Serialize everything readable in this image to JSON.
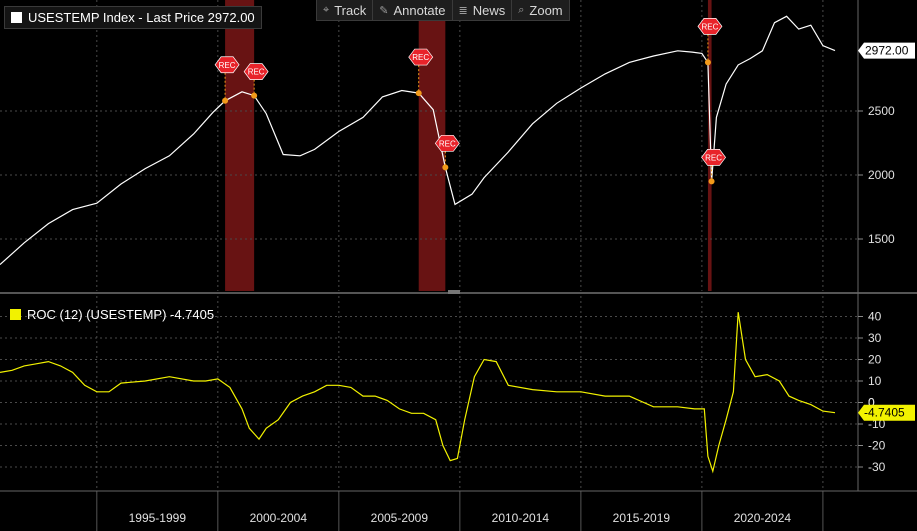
{
  "toolbar": {
    "track": "Track",
    "annotate": "Annotate",
    "news": "News",
    "zoom": "Zoom"
  },
  "legend_top": "USESTEMP Index - Last Price 2972.00",
  "legend_bottom": "ROC (12) (USESTEMP) -4.7405",
  "colors": {
    "price_line": "#ffffff",
    "roc_line": "#f2f200",
    "recession_band": "#8b1a1a",
    "rec_marker": "#e8232a",
    "marker_dot": "#f29a1a",
    "grid": "#4a4a4a"
  },
  "chart_data": [
    {
      "type": "line",
      "series": [
        {
          "name": "USESTEMP Index",
          "x": [
            1991.0,
            1992.0,
            1993.0,
            1994.0,
            1995.0,
            1996.0,
            1997.0,
            1998.0,
            1999.0,
            1999.8,
            2000.3,
            2001.0,
            2001.5,
            2002.0,
            2002.7,
            2003.4,
            2004.0,
            2005.0,
            2006.0,
            2006.8,
            2007.6,
            2008.3,
            2008.9,
            2009.4,
            2009.8,
            2010.5,
            2011.0,
            2012.0,
            2013.0,
            2014.0,
            2015.0,
            2016.0,
            2017.0,
            2018.0,
            2019.0,
            2019.6,
            2020.0,
            2020.25,
            2020.4,
            2020.6,
            2021.0,
            2021.5,
            2022.0,
            2022.5,
            2023.0,
            2023.5,
            2024.0,
            2024.5,
            2025.0,
            2025.5
          ],
          "y": [
            1300,
            1470,
            1620,
            1730,
            1780,
            1930,
            2050,
            2150,
            2320,
            2490,
            2580,
            2650,
            2620,
            2480,
            2160,
            2150,
            2200,
            2340,
            2450,
            2610,
            2660,
            2640,
            2510,
            2060,
            1770,
            1850,
            1980,
            2180,
            2400,
            2560,
            2680,
            2790,
            2880,
            2930,
            2970,
            2960,
            2950,
            2880,
            1950,
            2450,
            2710,
            2860,
            2910,
            2970,
            3190,
            3240,
            3140,
            3170,
            3010,
            2972
          ]
        }
      ],
      "recessions": [
        [
          2000.3,
          2001.5
        ],
        [
          2008.3,
          2009.4
        ],
        [
          2020.25,
          2020.4
        ]
      ],
      "y_ticks": [
        1500,
        2000,
        2500
      ],
      "last_label": "2972.00",
      "rec_label": "REC"
    },
    {
      "type": "line",
      "series": [
        {
          "name": "ROC (12) (USESTEMP)",
          "x": [
            1991.0,
            1991.5,
            1992.0,
            1992.5,
            1993.0,
            1993.5,
            1994.0,
            1994.5,
            1995.0,
            1995.5,
            1996.0,
            1997.0,
            1998.0,
            1999.0,
            1999.5,
            2000.0,
            2000.5,
            2001.0,
            2001.3,
            2001.7,
            2002.0,
            2002.5,
            2003.0,
            2003.5,
            2004.0,
            2004.5,
            2005.0,
            2005.5,
            2006.0,
            2006.5,
            2007.0,
            2007.5,
            2008.0,
            2008.5,
            2009.0,
            2009.3,
            2009.6,
            2009.9,
            2010.2,
            2010.6,
            2011.0,
            2011.5,
            2012.0,
            2013.0,
            2014.0,
            2015.0,
            2016.0,
            2017.0,
            2018.0,
            2019.0,
            2019.7,
            2020.1,
            2020.25,
            2020.45,
            2020.7,
            2021.0,
            2021.3,
            2021.5,
            2021.8,
            2022.2,
            2022.7,
            2023.2,
            2023.6,
            2024.0,
            2024.5,
            2025.0,
            2025.5
          ],
          "y": [
            14,
            15,
            17,
            18,
            19,
            17,
            14,
            8,
            5,
            5,
            9,
            10,
            12,
            10,
            10,
            11,
            7,
            -3,
            -12,
            -17,
            -12,
            -8,
            0,
            3,
            5,
            8,
            8,
            7,
            3,
            3,
            1,
            -3,
            -5,
            -5,
            -8,
            -20,
            -27,
            -26,
            -8,
            12,
            20,
            19,
            8,
            6,
            5,
            5,
            3,
            3,
            -2,
            -2,
            -3,
            -3,
            -25,
            -32,
            -20,
            -8,
            5,
            42,
            20,
            12,
            13,
            10,
            3,
            1,
            -1,
            -4,
            -4.74
          ]
        }
      ],
      "y_ticks": [
        -30,
        -20,
        -10,
        0,
        10,
        20,
        30,
        40
      ],
      "last_label": "-4.7405"
    }
  ],
  "x_axis": {
    "labels": [
      "1995-1999",
      "2000-2004",
      "2005-2009",
      "2010-2014",
      "2015-2019",
      "2020-2024"
    ]
  }
}
